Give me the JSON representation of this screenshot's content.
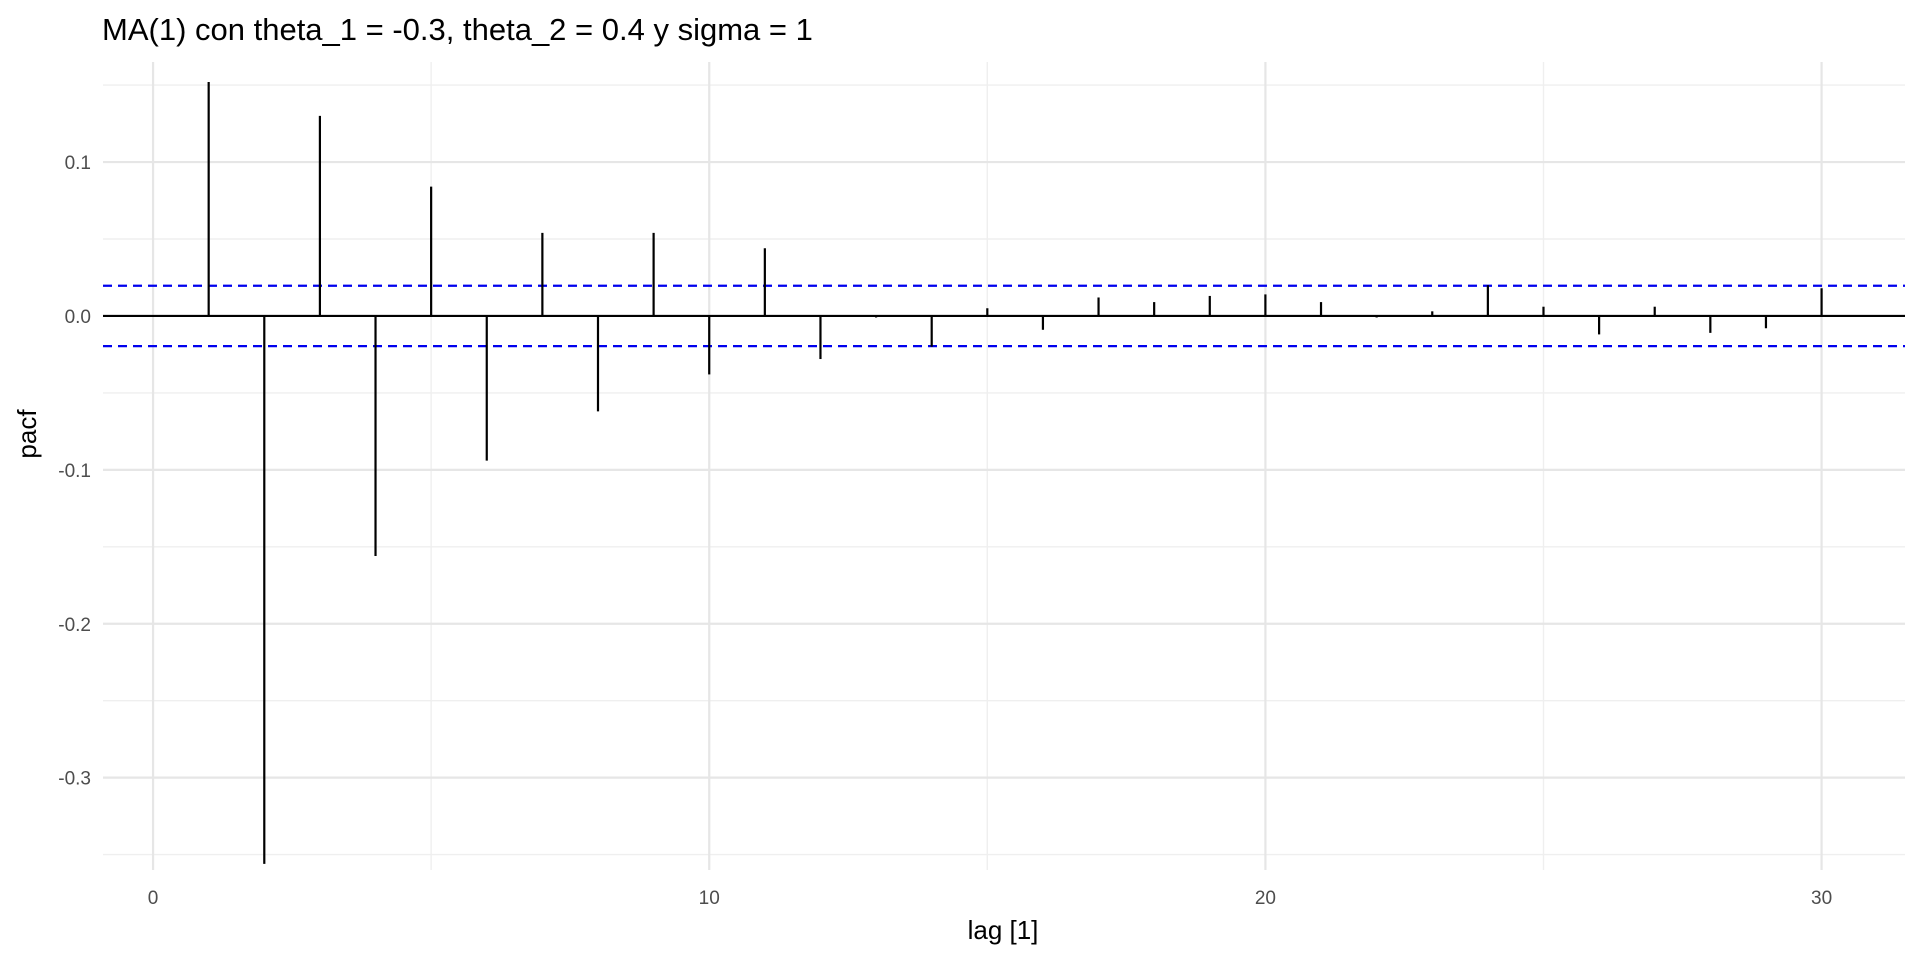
{
  "chart_data": {
    "type": "bar",
    "title": "MA(1) con theta_1 = -0.3, theta_2 = 0.4 y sigma = 1",
    "xlabel": "lag [1]",
    "ylabel": "pacf",
    "xlim": [
      -0.9,
      31.5
    ],
    "ylim": [
      -0.36,
      0.165
    ],
    "x_ticks": [
      0,
      10,
      20,
      30
    ],
    "x_tick_labels": [
      "0",
      "10",
      "20",
      "30"
    ],
    "y_ticks": [
      0.1,
      0.0,
      -0.1,
      -0.2,
      -0.3
    ],
    "y_tick_labels": [
      "0.1",
      "0.0",
      "-0.1",
      "-0.2",
      "-0.3"
    ],
    "grid": true,
    "confidence_bound": 0.0196,
    "lags": [
      1,
      2,
      3,
      4,
      5,
      6,
      7,
      8,
      9,
      10,
      11,
      12,
      13,
      14,
      15,
      16,
      17,
      18,
      19,
      20,
      21,
      22,
      23,
      24,
      25,
      26,
      27,
      28,
      29,
      30
    ],
    "values": [
      0.152,
      -0.356,
      0.13,
      -0.156,
      0.084,
      -0.094,
      0.054,
      -0.062,
      0.054,
      -0.038,
      0.044,
      -0.028,
      -0.001,
      -0.02,
      0.005,
      -0.009,
      0.012,
      0.009,
      0.013,
      0.014,
      0.009,
      -0.001,
      0.003,
      0.02,
      0.006,
      -0.012,
      0.006,
      -0.011,
      -0.008,
      0.018
    ]
  }
}
